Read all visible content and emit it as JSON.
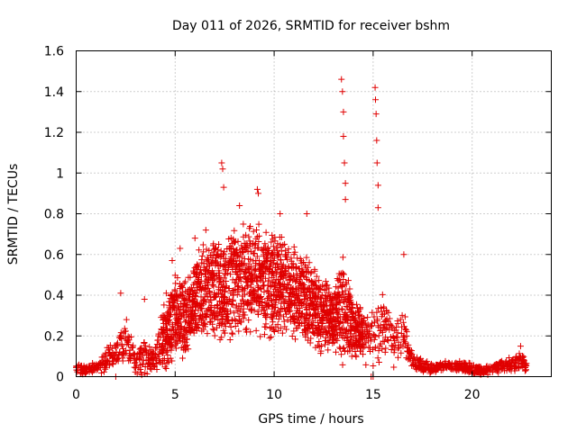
{
  "chart_data": {
    "type": "scatter",
    "title": "Day 011 of 2026, SRMTID for receiver bshm",
    "xlabel": "GPS time / hours",
    "ylabel": "SRMTID / TECUs",
    "xlim": [
      0,
      24
    ],
    "ylim": [
      0,
      1.6
    ],
    "x_ticks": [
      0,
      5,
      10,
      15,
      20
    ],
    "x_tick_labels": [
      "0",
      "5",
      "10",
      "15",
      "20"
    ],
    "y_ticks": [
      0,
      0.2,
      0.4,
      0.6,
      0.8,
      1.0,
      1.2,
      1.4,
      1.6
    ],
    "y_tick_labels": [
      "0",
      "0.2",
      "0.4",
      "0.6",
      "0.8",
      "1",
      "1.2",
      "1.4",
      "1.6"
    ],
    "grid": true,
    "marker": "plus",
    "series": [
      {
        "name": "SRMTID",
        "color": "#e00000",
        "envelope": {
          "hours": [
            0,
            0.5,
            1,
            1.5,
            2,
            2.5,
            3,
            3.5,
            4,
            4.5,
            5,
            5.5,
            6,
            6.5,
            7,
            7.5,
            8,
            8.5,
            9,
            9.5,
            10,
            10.5,
            11,
            11.5,
            12,
            12.5,
            13,
            13.5,
            14,
            14.5,
            15,
            15.5,
            16,
            16.5,
            17,
            17.5,
            18,
            18.5,
            19,
            19.5,
            20,
            20.5,
            21,
            21.5,
            22,
            22.5,
            22.75
          ],
          "typical_srmtid": [
            0.04,
            0.03,
            0.05,
            0.08,
            0.12,
            0.16,
            0.08,
            0.09,
            0.1,
            0.2,
            0.3,
            0.28,
            0.38,
            0.42,
            0.45,
            0.4,
            0.46,
            0.5,
            0.5,
            0.45,
            0.44,
            0.45,
            0.42,
            0.38,
            0.34,
            0.3,
            0.28,
            0.32,
            0.25,
            0.2,
            0.2,
            0.25,
            0.18,
            0.22,
            0.08,
            0.05,
            0.04,
            0.05,
            0.05,
            0.05,
            0.04,
            0.03,
            0.04,
            0.05,
            0.06,
            0.08,
            0.04
          ],
          "scatter_amplitude": [
            0.02,
            0.02,
            0.02,
            0.05,
            0.05,
            0.1,
            0.05,
            0.08,
            0.05,
            0.15,
            0.15,
            0.15,
            0.15,
            0.18,
            0.2,
            0.2,
            0.2,
            0.22,
            0.2,
            0.2,
            0.2,
            0.18,
            0.18,
            0.18,
            0.15,
            0.15,
            0.12,
            0.2,
            0.12,
            0.1,
            0.12,
            0.12,
            0.1,
            0.1,
            0.04,
            0.03,
            0.02,
            0.02,
            0.02,
            0.02,
            0.02,
            0.02,
            0.02,
            0.02,
            0.03,
            0.04,
            0.02
          ]
        },
        "notable_points": [
          {
            "x": 2.25,
            "y": 0.41
          },
          {
            "x": 3.45,
            "y": 0.38
          },
          {
            "x": 4.85,
            "y": 0.57
          },
          {
            "x": 5.25,
            "y": 0.63
          },
          {
            "x": 6.0,
            "y": 0.68
          },
          {
            "x": 6.55,
            "y": 0.72
          },
          {
            "x": 7.35,
            "y": 1.05
          },
          {
            "x": 7.4,
            "y": 1.02
          },
          {
            "x": 7.45,
            "y": 0.93
          },
          {
            "x": 8.25,
            "y": 0.84
          },
          {
            "x": 9.15,
            "y": 0.92
          },
          {
            "x": 9.2,
            "y": 0.9
          },
          {
            "x": 10.3,
            "y": 0.8
          },
          {
            "x": 11.65,
            "y": 0.8
          },
          {
            "x": 13.4,
            "y": 1.46
          },
          {
            "x": 13.45,
            "y": 1.4
          },
          {
            "x": 13.5,
            "y": 1.3
          },
          {
            "x": 13.5,
            "y": 1.18
          },
          {
            "x": 13.55,
            "y": 1.05
          },
          {
            "x": 13.6,
            "y": 0.95
          },
          {
            "x": 13.6,
            "y": 0.87
          },
          {
            "x": 15.1,
            "y": 1.42
          },
          {
            "x": 15.12,
            "y": 1.36
          },
          {
            "x": 15.15,
            "y": 1.29
          },
          {
            "x": 15.18,
            "y": 1.16
          },
          {
            "x": 15.2,
            "y": 1.05
          },
          {
            "x": 15.25,
            "y": 0.94
          },
          {
            "x": 15.25,
            "y": 0.83
          },
          {
            "x": 16.55,
            "y": 0.6
          },
          {
            "x": 22.45,
            "y": 0.15
          },
          {
            "x": 2.0,
            "y": 0.0
          },
          {
            "x": 14.9,
            "y": 0.0
          },
          {
            "x": 15.0,
            "y": 0.0
          }
        ]
      }
    ]
  }
}
